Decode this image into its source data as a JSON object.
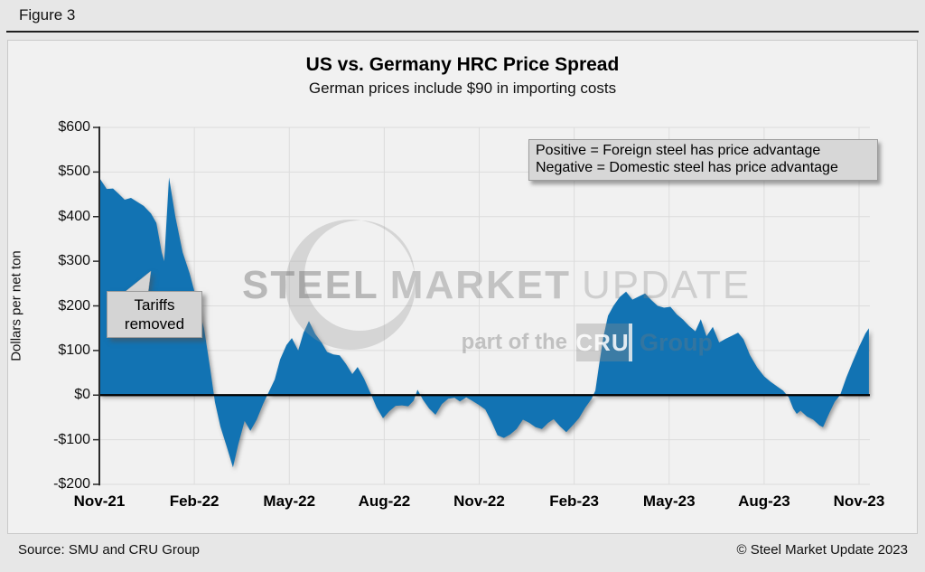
{
  "page": {
    "figure_label": "Figure 3",
    "footer_left": "Source: SMU and CRU Group",
    "footer_right": "© Steel Market Update 2023"
  },
  "chart_data": {
    "type": "area",
    "title": "US vs. Germany HRC Price Spread",
    "subtitle": "German prices include $90 in importing costs",
    "ylabel": "Dollars per net ton",
    "ylim": [
      -200,
      600
    ],
    "ytick_values": [
      600,
      500,
      400,
      300,
      200,
      100,
      0,
      -100,
      -200
    ],
    "ytick_labels": [
      "$600",
      "$500",
      "$400",
      "$300",
      "$200",
      "$100",
      "$0",
      "-$100",
      "-$200"
    ],
    "x_unit": "months since Nov-2021",
    "xlim": [
      0,
      24.34
    ],
    "xtick_months": [
      0,
      3,
      6,
      9,
      12,
      15,
      18,
      21,
      24
    ],
    "xtick_labels": [
      "Nov-21",
      "Feb-22",
      "May-22",
      "Aug-22",
      "Nov-22",
      "Feb-23",
      "May-23",
      "Aug-23",
      "Nov-23"
    ],
    "grid": true,
    "series_name": "US vs Germany HRC price spread, dollars per net ton",
    "area_color": "#1273B3",
    "zero_line_color": "#000000",
    "points": [
      [
        0,
        487
      ],
      [
        0.23,
        462
      ],
      [
        0.43,
        463
      ],
      [
        0.6,
        452
      ],
      [
        0.8,
        438
      ],
      [
        1,
        442
      ],
      [
        1.2,
        433
      ],
      [
        1.4,
        424
      ],
      [
        1.63,
        407
      ],
      [
        1.8,
        386
      ],
      [
        1.97,
        320
      ],
      [
        2.05,
        300
      ],
      [
        2.2,
        488
      ],
      [
        2.4,
        400
      ],
      [
        2.63,
        320
      ],
      [
        2.85,
        273
      ],
      [
        3.08,
        212
      ],
      [
        3.31,
        148
      ],
      [
        3.51,
        55
      ],
      [
        3.65,
        -15
      ],
      [
        3.82,
        -70
      ],
      [
        4.02,
        -115
      ],
      [
        4.22,
        -162
      ],
      [
        4.39,
        -110
      ],
      [
        4.59,
        -58
      ],
      [
        4.77,
        -80
      ],
      [
        4.97,
        -55
      ],
      [
        5.17,
        -20
      ],
      [
        5.34,
        5
      ],
      [
        5.54,
        35
      ],
      [
        5.71,
        80
      ],
      [
        5.91,
        112
      ],
      [
        6.08,
        128
      ],
      [
        6.28,
        100
      ],
      [
        6.45,
        140
      ],
      [
        6.62,
        166
      ],
      [
        6.82,
        137
      ],
      [
        7.02,
        118
      ],
      [
        7.19,
        97
      ],
      [
        7.39,
        91
      ],
      [
        7.59,
        89
      ],
      [
        7.79,
        70
      ],
      [
        7.99,
        47
      ],
      [
        8.16,
        63
      ],
      [
        8.36,
        37
      ],
      [
        8.56,
        5
      ],
      [
        8.76,
        -28
      ],
      [
        8.96,
        -52
      ],
      [
        9.16,
        -36
      ],
      [
        9.36,
        -24
      ],
      [
        9.56,
        -23
      ],
      [
        9.76,
        -25
      ],
      [
        9.93,
        -12
      ],
      [
        10.05,
        12
      ],
      [
        10.22,
        -10
      ],
      [
        10.42,
        -30
      ],
      [
        10.62,
        -44
      ],
      [
        10.82,
        -20
      ],
      [
        11.02,
        -8
      ],
      [
        11.22,
        -6
      ],
      [
        11.39,
        -14
      ],
      [
        11.59,
        -5
      ],
      [
        11.79,
        -13
      ],
      [
        11.99,
        -22
      ],
      [
        12.19,
        -32
      ],
      [
        12.39,
        -60
      ],
      [
        12.58,
        -90
      ],
      [
        12.78,
        -96
      ],
      [
        12.98,
        -88
      ],
      [
        13.18,
        -76
      ],
      [
        13.38,
        -55
      ],
      [
        13.58,
        -62
      ],
      [
        13.78,
        -72
      ],
      [
        13.98,
        -76
      ],
      [
        14.18,
        -62
      ],
      [
        14.35,
        -54
      ],
      [
        14.55,
        -70
      ],
      [
        14.75,
        -83
      ],
      [
        14.95,
        -68
      ],
      [
        15.15,
        -52
      ],
      [
        15.35,
        -28
      ],
      [
        15.55,
        -8
      ],
      [
        15.67,
        10
      ],
      [
        15.78,
        65
      ],
      [
        15.92,
        130
      ],
      [
        16.07,
        178
      ],
      [
        16.24,
        200
      ],
      [
        16.44,
        220
      ],
      [
        16.64,
        232
      ],
      [
        16.84,
        214
      ],
      [
        17.04,
        221
      ],
      [
        17.24,
        228
      ],
      [
        17.44,
        213
      ],
      [
        17.64,
        200
      ],
      [
        17.84,
        196
      ],
      [
        18.04,
        198
      ],
      [
        18.24,
        181
      ],
      [
        18.44,
        169
      ],
      [
        18.63,
        155
      ],
      [
        18.83,
        143
      ],
      [
        19,
        170
      ],
      [
        19.18,
        132
      ],
      [
        19.38,
        153
      ],
      [
        19.58,
        118
      ],
      [
        19.78,
        126
      ],
      [
        19.98,
        133
      ],
      [
        20.18,
        140
      ],
      [
        20.35,
        125
      ],
      [
        20.55,
        90
      ],
      [
        20.78,
        62
      ],
      [
        21,
        42
      ],
      [
        21.2,
        30
      ],
      [
        21.4,
        20
      ],
      [
        21.6,
        10
      ],
      [
        21.78,
        -5
      ],
      [
        21.92,
        -30
      ],
      [
        22.03,
        -42
      ],
      [
        22.15,
        -35
      ],
      [
        22.35,
        -48
      ],
      [
        22.55,
        -55
      ],
      [
        22.75,
        -68
      ],
      [
        22.86,
        -72
      ],
      [
        23.06,
        -40
      ],
      [
        23.23,
        -15
      ],
      [
        23.4,
        0
      ],
      [
        23.6,
        40
      ],
      [
        23.8,
        75
      ],
      [
        24,
        108
      ],
      [
        24.2,
        138
      ],
      [
        24.31,
        150
      ]
    ],
    "annotations": {
      "note_line1": "Positive = Foreign steel has price advantage",
      "note_line2": "Negative = Domestic steel has price advantage",
      "callout_line1": "Tariffs",
      "callout_line2": "removed"
    },
    "watermark": {
      "word1": "STEEL",
      "word2": "MARKET",
      "word3": "UPDATE",
      "tagline_prefix": "part of the",
      "tagline_box": "CRU",
      "tagline_suffix": "Group"
    }
  }
}
